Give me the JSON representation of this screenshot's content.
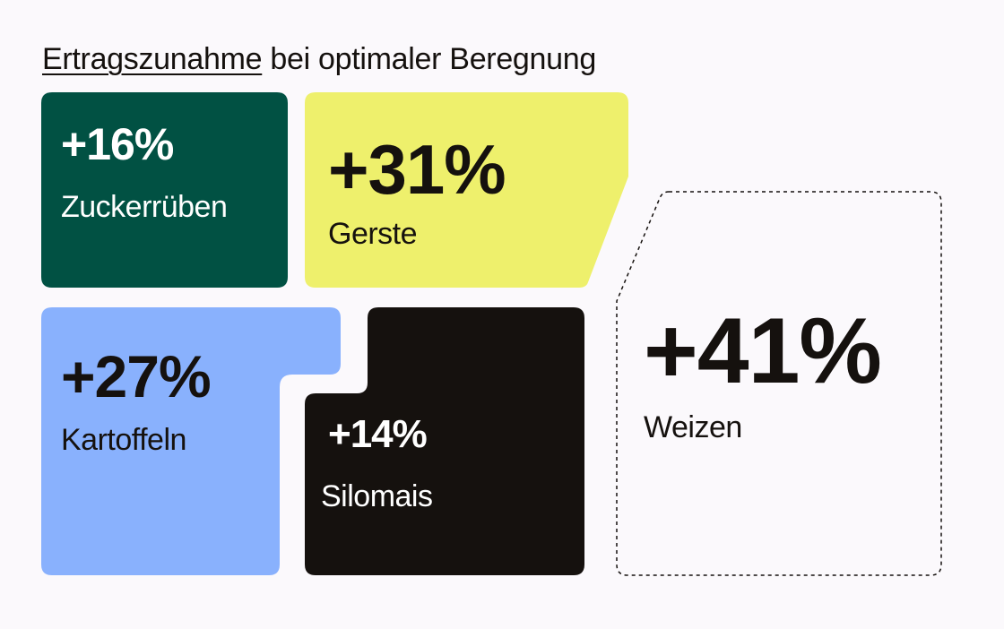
{
  "title": {
    "underlined": "Ertragszunahme",
    "rest": " bei optimaler Beregnung"
  },
  "colors": {
    "zuckerrueben": "#015143",
    "gerste": "#eef06c",
    "kartoffeln": "#89b1fd",
    "silomais": "#15110e",
    "weizen_border": "#15110e",
    "background": "#fbf9fc"
  },
  "chart_data": {
    "type": "treemap",
    "title": "Ertragszunahme bei optimaler Beregnung",
    "categories": [
      "Zuckerrüben",
      "Gerste",
      "Kartoffeln",
      "Silomais",
      "Weizen"
    ],
    "values": [
      16,
      31,
      27,
      14,
      41
    ],
    "value_labels": [
      "+16%",
      "+31%",
      "+27%",
      "+14%",
      "+41%"
    ],
    "unit": "%"
  }
}
